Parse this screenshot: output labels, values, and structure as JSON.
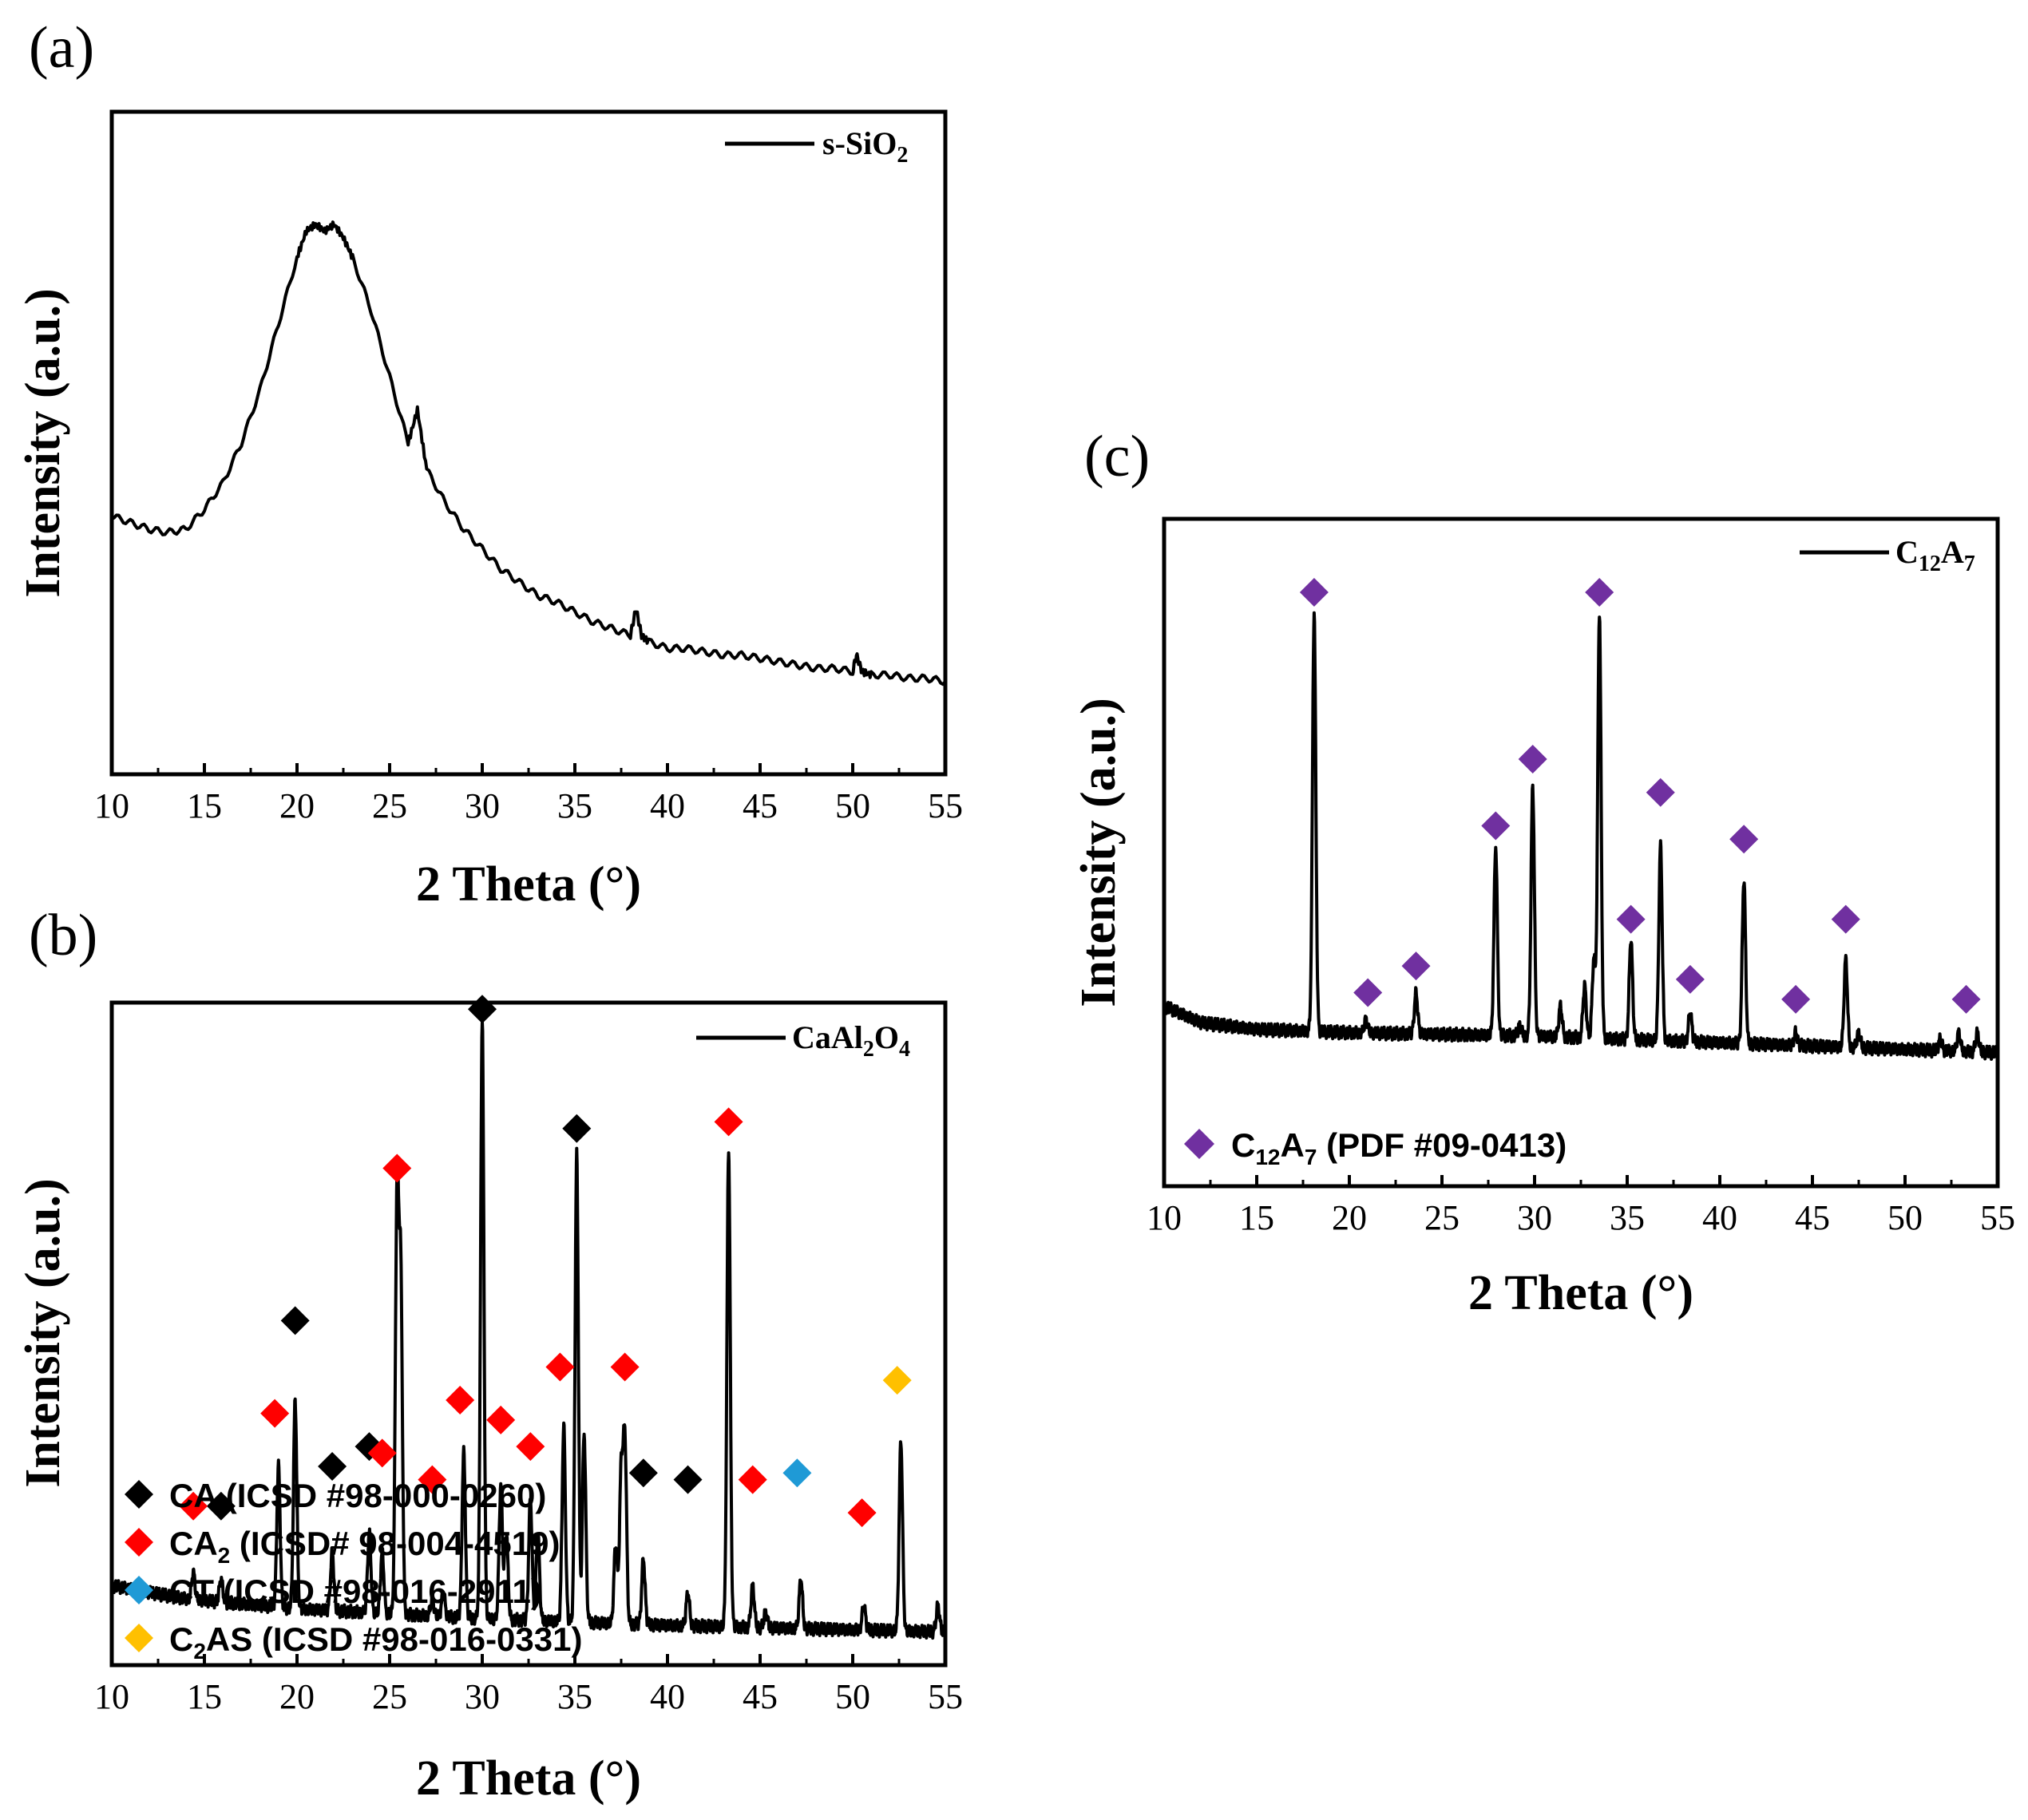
{
  "figure": {
    "panels": [
      {
        "id": "a",
        "letter": "(a)",
        "xlabel": "2 Theta (°)",
        "ylabel": "Intensity (a.u.)",
        "series_label": "s-SiO",
        "series_sub": "2"
      },
      {
        "id": "b",
        "letter": "(b)",
        "xlabel": "2 Theta (°)",
        "ylabel": "Intensity (a.u.)",
        "series_label": "CaAl",
        "series_sub1": "2",
        "series_mid": "O",
        "series_sub2": "4"
      },
      {
        "id": "c",
        "letter": "(c)",
        "xlabel": "2 Theta (°)",
        "ylabel": "Intensity (a.u.)",
        "series_label": "C",
        "series_sub1": "12",
        "series_mid": "A",
        "series_sub2": "7"
      }
    ],
    "phase_legend_b": [
      {
        "pre": "CA (ICSD #98-000-0260)",
        "color": "#000000"
      },
      {
        "pre": "CA",
        "sub": "2",
        "post": " (ICSD# 98-004-4519)",
        "color": "#ff0000"
      },
      {
        "pre": "CT (ICSD #98-016-2911)",
        "color": "#1f9ad6"
      },
      {
        "pre": "C",
        "sub": "2",
        "post": "AS (ICSD #98-016-0331)",
        "color": "#ffc000"
      }
    ],
    "phase_legend_c": [
      {
        "pre": "C",
        "sub": "12",
        "mid": "A",
        "sub2": "7",
        "post": " (PDF #09-0413)",
        "color": "#7030a0"
      }
    ]
  },
  "chart_data": [
    {
      "type": "line",
      "title": "",
      "xlabel": "2 Theta (°)",
      "ylabel": "Intensity (a.u.)",
      "xlim": [
        10,
        55
      ],
      "xticks": [
        10,
        15,
        20,
        25,
        30,
        35,
        40,
        45,
        50,
        55
      ],
      "y_ticks_shown": false,
      "legend": "top-right",
      "series": [
        {
          "name": "s-SiO2",
          "x": [
            10,
            11,
            12,
            13,
            14,
            15,
            16,
            17,
            18,
            19,
            20,
            20.5,
            21,
            21.5,
            22,
            22.5,
            23,
            24,
            25,
            26,
            26.5,
            27,
            28,
            29,
            30,
            31,
            32,
            33,
            34,
            35,
            36,
            37,
            38,
            38.3,
            38.6,
            39,
            40,
            41,
            42,
            43,
            44,
            45,
            46,
            47,
            48,
            49,
            50,
            50.2,
            50.5,
            51,
            52,
            53,
            54,
            55
          ],
          "y": [
            0.39,
            0.38,
            0.37,
            0.365,
            0.37,
            0.4,
            0.44,
            0.5,
            0.58,
            0.68,
            0.78,
            0.82,
            0.83,
            0.82,
            0.83,
            0.81,
            0.78,
            0.7,
            0.6,
            0.5,
            0.55,
            0.46,
            0.41,
            0.37,
            0.34,
            0.31,
            0.29,
            0.27,
            0.26,
            0.245,
            0.23,
            0.22,
            0.21,
            0.25,
            0.21,
            0.2,
            0.19,
            0.19,
            0.185,
            0.18,
            0.18,
            0.175,
            0.17,
            0.165,
            0.16,
            0.16,
            0.155,
            0.18,
            0.155,
            0.15,
            0.15,
            0.145,
            0.145,
            0.14
          ]
        }
      ]
    },
    {
      "type": "line",
      "title": "",
      "xlabel": "2 Theta (°)",
      "ylabel": "Intensity (a.u.)",
      "xlim": [
        10,
        55
      ],
      "xticks": [
        10,
        15,
        20,
        25,
        30,
        35,
        40,
        45,
        50,
        55
      ],
      "y_ticks_shown": false,
      "legend": "top-right",
      "series": [
        {
          "name": "CaAl2O4",
          "baseline": [
            [
              10,
              0.12
            ],
            [
              14,
              0.1
            ],
            [
              20,
              0.085
            ],
            [
              30,
              0.07
            ],
            [
              40,
              0.06
            ],
            [
              55,
              0.05
            ]
          ],
          "peaks": [
            {
              "x": 14.4,
              "y": 0.14
            },
            {
              "x": 15.9,
              "y": 0.13
            },
            {
              "x": 19.0,
              "y": 0.3
            },
            {
              "x": 19.9,
              "y": 0.4
            },
            {
              "x": 21.9,
              "y": 0.17
            },
            {
              "x": 23.9,
              "y": 0.2
            },
            {
              "x": 24.6,
              "y": 0.17
            },
            {
              "x": 25.4,
              "y": 0.71
            },
            {
              "x": 25.6,
              "y": 0.58
            },
            {
              "x": 27.3,
              "y": 0.1
            },
            {
              "x": 27.9,
              "y": 0.11
            },
            {
              "x": 29.0,
              "y": 0.32
            },
            {
              "x": 30.0,
              "y": 0.97
            },
            {
              "x": 31.0,
              "y": 0.27
            },
            {
              "x": 31.3,
              "y": 0.2
            },
            {
              "x": 32.6,
              "y": 0.25
            },
            {
              "x": 33.0,
              "y": 0.2
            },
            {
              "x": 34.4,
              "y": 0.36
            },
            {
              "x": 35.1,
              "y": 0.77
            },
            {
              "x": 35.5,
              "y": 0.35
            },
            {
              "x": 37.2,
              "y": 0.18
            },
            {
              "x": 37.5,
              "y": 0.29
            },
            {
              "x": 37.7,
              "y": 0.34
            },
            {
              "x": 38.7,
              "y": 0.16
            },
            {
              "x": 41.1,
              "y": 0.11
            },
            {
              "x": 43.3,
              "y": 0.78
            },
            {
              "x": 44.6,
              "y": 0.12
            },
            {
              "x": 45.3,
              "y": 0.08
            },
            {
              "x": 47.2,
              "y": 0.13
            },
            {
              "x": 50.6,
              "y": 0.09
            },
            {
              "x": 52.6,
              "y": 0.34
            },
            {
              "x": 54.6,
              "y": 0.09
            }
          ]
        }
      ],
      "markers": [
        {
          "phase": "CA",
          "x": [
            15.9,
            19.9,
            21.9,
            23.9,
            30.0,
            35.1,
            38.7,
            41.1
          ],
          "y": [
            0.24,
            0.52,
            0.3,
            0.33,
            0.99,
            0.81,
            0.29,
            0.28
          ]
        },
        {
          "phase": "CA2",
          "x": [
            14.4,
            18.8,
            24.6,
            25.4,
            27.3,
            28.8,
            31.0,
            32.6,
            34.2,
            37.7,
            43.3,
            44.6,
            50.5
          ],
          "y": [
            0.24,
            0.38,
            0.32,
            0.75,
            0.28,
            0.4,
            0.37,
            0.33,
            0.45,
            0.45,
            0.82,
            0.28,
            0.23
          ]
        },
        {
          "phase": "CT",
          "x": [
            47.0
          ],
          "y": [
            0.29
          ]
        },
        {
          "phase": "C2AS",
          "x": [
            52.4
          ],
          "y": [
            0.43
          ]
        }
      ]
    },
    {
      "type": "line",
      "title": "",
      "xlabel": "2 Theta (°)",
      "ylabel": "Intensity (a.u.)",
      "xlim": [
        10,
        55
      ],
      "xticks": [
        10,
        15,
        20,
        25,
        30,
        35,
        40,
        45,
        50,
        55
      ],
      "y_ticks_shown": false,
      "legend": "top-right",
      "series": [
        {
          "name": "C12A7",
          "baseline": [
            [
              10,
              0.27
            ],
            [
              12,
              0.245
            ],
            [
              15,
              0.235
            ],
            [
              20,
              0.23
            ],
            [
              30,
              0.225
            ],
            [
              40,
              0.215
            ],
            [
              55,
              0.2
            ]
          ],
          "peaks": [
            {
              "x": 18.1,
              "y": 0.86
            },
            {
              "x": 20.9,
              "y": 0.25
            },
            {
              "x": 23.6,
              "y": 0.29
            },
            {
              "x": 27.9,
              "y": 0.51
            },
            {
              "x": 29.2,
              "y": 0.24
            },
            {
              "x": 29.9,
              "y": 0.6
            },
            {
              "x": 31.4,
              "y": 0.27
            },
            {
              "x": 32.7,
              "y": 0.3
            },
            {
              "x": 33.2,
              "y": 0.34
            },
            {
              "x": 33.5,
              "y": 0.86
            },
            {
              "x": 35.2,
              "y": 0.37
            },
            {
              "x": 36.8,
              "y": 0.51
            },
            {
              "x": 38.4,
              "y": 0.26
            },
            {
              "x": 41.3,
              "y": 0.46
            },
            {
              "x": 44.1,
              "y": 0.23
            },
            {
              "x": 46.8,
              "y": 0.34
            },
            {
              "x": 47.5,
              "y": 0.23
            },
            {
              "x": 51.9,
              "y": 0.22
            },
            {
              "x": 52.9,
              "y": 0.23
            },
            {
              "x": 53.9,
              "y": 0.23
            }
          ]
        }
      ],
      "markers": [
        {
          "phase": "C12A7",
          "x": [
            18.1,
            21.0,
            23.6,
            27.9,
            29.9,
            33.5,
            35.2,
            36.8,
            38.4,
            41.3,
            44.1,
            46.8,
            53.3
          ],
          "y": [
            0.89,
            0.29,
            0.33,
            0.54,
            0.64,
            0.89,
            0.4,
            0.59,
            0.31,
            0.52,
            0.28,
            0.4,
            0.28
          ]
        }
      ]
    }
  ]
}
